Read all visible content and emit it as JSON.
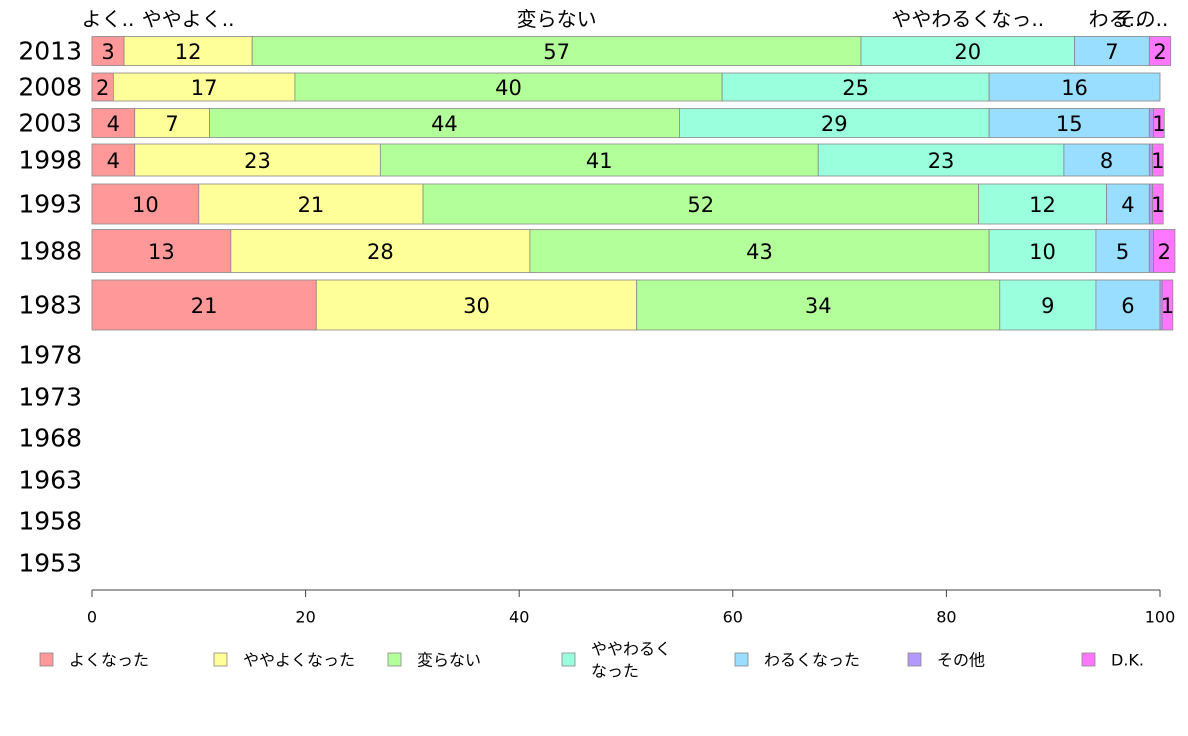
{
  "chart_data": {
    "type": "bar",
    "orientation": "horizontal",
    "stacked": true,
    "title": "",
    "xlabel": "",
    "ylabel": "",
    "xlim": [
      0,
      100
    ],
    "x_ticks": [
      "0",
      "20",
      "40",
      "60",
      "80",
      "100"
    ],
    "categories": [
      "2013",
      "2008",
      "2003",
      "1998",
      "1993",
      "1988",
      "1983",
      "1978",
      "1973",
      "1968",
      "1963",
      "1958",
      "1953"
    ],
    "top_labels": [
      "よく..",
      "ややよく..",
      "変らない",
      "ややわるくなっ..",
      "わる..",
      "その.."
    ],
    "series": [
      {
        "name": "よくなった",
        "color": "#ff9999",
        "values": [
          3,
          2,
          4,
          4,
          10,
          13,
          21,
          null,
          null,
          null,
          null,
          null,
          null
        ]
      },
      {
        "name": "ややよくなった",
        "color": "#ffff99",
        "values": [
          12,
          17,
          7,
          23,
          21,
          28,
          30,
          null,
          null,
          null,
          null,
          null,
          null
        ]
      },
      {
        "name": "変らない",
        "color": "#b3ff99",
        "values": [
          57,
          40,
          44,
          41,
          52,
          43,
          34,
          null,
          null,
          null,
          null,
          null,
          null
        ]
      },
      {
        "name": "ややわるくなった",
        "color": "#99ffdd",
        "values": [
          20,
          25,
          29,
          23,
          12,
          10,
          9,
          null,
          null,
          null,
          null,
          null,
          null
        ]
      },
      {
        "name": "わるくなった",
        "color": "#99ddff",
        "values": [
          7,
          16,
          15,
          8,
          4,
          5,
          6,
          null,
          null,
          null,
          null,
          null,
          null
        ]
      },
      {
        "name": "その他",
        "color": "#b399ff",
        "values": [
          0,
          0,
          0.4,
          0.3,
          0.3,
          0.4,
          0.2,
          null,
          null,
          null,
          null,
          null,
          null
        ]
      },
      {
        "name": "D.K.",
        "color": "#ff77ff",
        "values": [
          2,
          0,
          1,
          1,
          1,
          2,
          1,
          null,
          null,
          null,
          null,
          null,
          null
        ]
      }
    ],
    "legend": {
      "placement": "bottom",
      "entries": [
        "よくなった",
        "ややよくなった",
        "変らない",
        "ややわるく\nなった",
        "わるくなった",
        "その他",
        "D.K."
      ]
    },
    "grid": false
  }
}
